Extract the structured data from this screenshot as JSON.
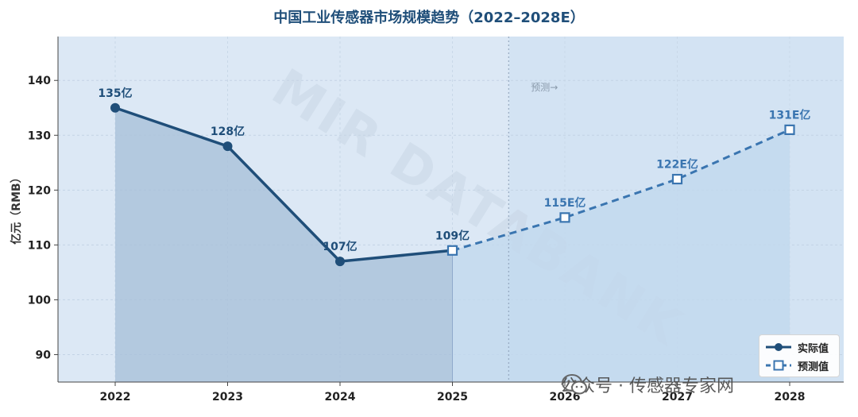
{
  "chart_data": {
    "type": "line",
    "title": "中国工业传感器市场规模趋势（2022–2028E）",
    "ylabel": "亿元（RMB）",
    "xlabel": "",
    "categories": [
      "2022",
      "2023",
      "2024",
      "2025",
      "2026",
      "2027",
      "2028"
    ],
    "ylim": [
      85,
      148
    ],
    "yticks": [
      90,
      100,
      110,
      120,
      130,
      140
    ],
    "grid": true,
    "legend_position": "bottom-right",
    "series": [
      {
        "name": "实际值",
        "style": "solid",
        "marker": "filled-circle",
        "color": "#1f4e79",
        "x": [
          "2022",
          "2023",
          "2024",
          "2025"
        ],
        "values": [
          135,
          128,
          107,
          109
        ],
        "labels": [
          "135亿",
          "128亿",
          "107亿",
          "109亿"
        ]
      },
      {
        "name": "预测值",
        "style": "dashed",
        "marker": "hollow-square",
        "color": "#3a75b0",
        "x": [
          "2025",
          "2026",
          "2027",
          "2028"
        ],
        "values": [
          109,
          115,
          122,
          131
        ],
        "labels": [
          "",
          "115E亿",
          "122E亿",
          "131E亿"
        ]
      }
    ],
    "annotations": [
      {
        "text": "预测→",
        "position": "after-2025-divider-top"
      }
    ],
    "forecast_divider_between": [
      "2025",
      "2026"
    ],
    "watermark_text": "MIR DATABANK",
    "colors": {
      "plot_bg": "#dce8f5",
      "forecast_bg": "#d3e3f3",
      "actual_fill": "#a9c0da",
      "forecast_fill": "#c2d8ee"
    }
  },
  "footer": {
    "text": "公众号 · 传感器专家网",
    "icon": "wechat-icon"
  }
}
